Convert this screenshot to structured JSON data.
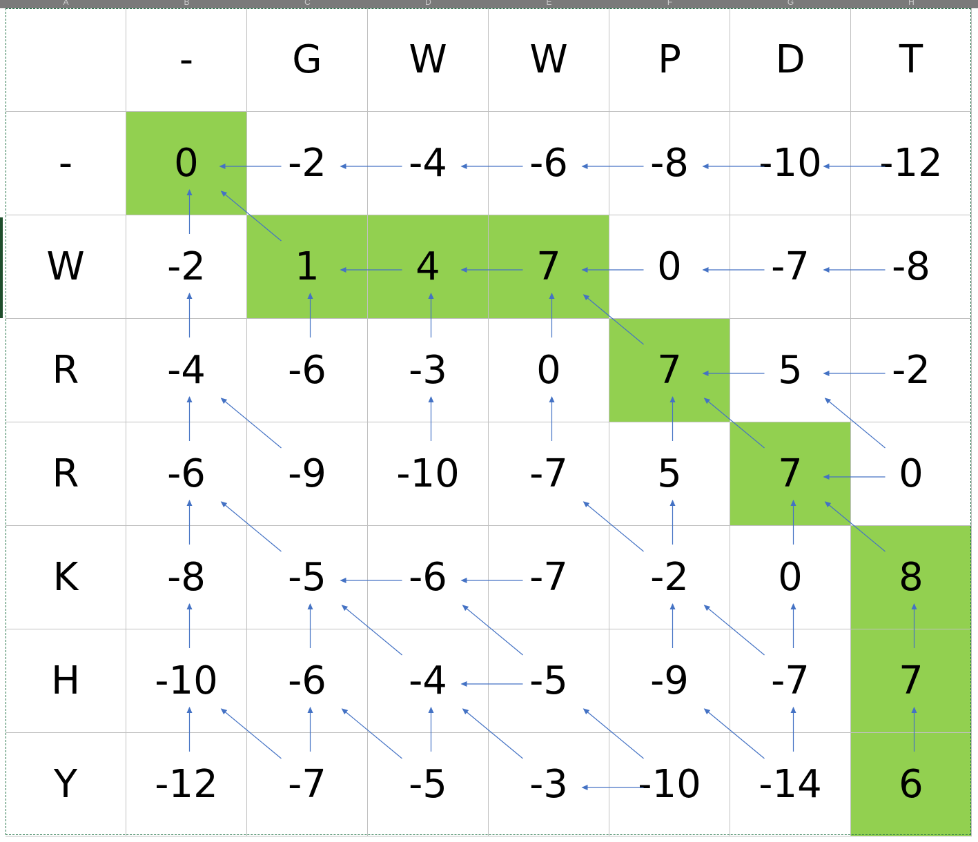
{
  "sheet": {
    "column_letters": [
      "A",
      "B",
      "C",
      "D",
      "E",
      "F",
      "G",
      "H"
    ]
  },
  "matrix": {
    "col_headers": [
      "-",
      "G",
      "W",
      "W",
      "P",
      "D",
      "T"
    ],
    "row_headers": [
      "-",
      "W",
      "R",
      "R",
      "K",
      "H",
      "Y"
    ],
    "cells": [
      [
        "0",
        "-2",
        "-4",
        "-6",
        "-8",
        "-10",
        "-12"
      ],
      [
        "-2",
        "1",
        "4",
        "7",
        "0",
        "-7",
        "-8"
      ],
      [
        "-4",
        "-6",
        "-3",
        "0",
        "7",
        "5",
        "-2"
      ],
      [
        "-6",
        "-9",
        "-10",
        "-7",
        "5",
        "7",
        "0"
      ],
      [
        "-8",
        "-5",
        "-6",
        "-7",
        "-2",
        "0",
        "8"
      ],
      [
        "-10",
        "-6",
        "-4",
        "-5",
        "-9",
        "-7",
        "7"
      ],
      [
        "-12",
        "-7",
        "-5",
        "-3",
        "-10",
        "-14",
        "6"
      ]
    ],
    "highlighted_path": [
      [
        0,
        0
      ],
      [
        1,
        1
      ],
      [
        1,
        2
      ],
      [
        1,
        3
      ],
      [
        2,
        4
      ],
      [
        3,
        5
      ],
      [
        4,
        6
      ],
      [
        5,
        6
      ],
      [
        6,
        6
      ]
    ],
    "arrows": [
      [
        0,
        1,
        "L"
      ],
      [
        0,
        2,
        "L"
      ],
      [
        0,
        3,
        "L"
      ],
      [
        0,
        4,
        "L"
      ],
      [
        0,
        5,
        "L"
      ],
      [
        0,
        6,
        "L"
      ],
      [
        1,
        0,
        "U"
      ],
      [
        1,
        1,
        "D"
      ],
      [
        1,
        2,
        "L"
      ],
      [
        1,
        3,
        "L"
      ],
      [
        1,
        4,
        "L"
      ],
      [
        1,
        5,
        "L"
      ],
      [
        1,
        6,
        "L"
      ],
      [
        2,
        0,
        "U"
      ],
      [
        2,
        1,
        "U"
      ],
      [
        2,
        2,
        "U"
      ],
      [
        2,
        3,
        "U"
      ],
      [
        2,
        4,
        "D"
      ],
      [
        2,
        5,
        "L"
      ],
      [
        2,
        6,
        "L"
      ],
      [
        3,
        0,
        "U"
      ],
      [
        3,
        1,
        "D"
      ],
      [
        3,
        2,
        "U"
      ],
      [
        3,
        3,
        "U"
      ],
      [
        3,
        4,
        "U"
      ],
      [
        3,
        5,
        "D"
      ],
      [
        3,
        6,
        "L"
      ],
      [
        3,
        6,
        "D"
      ],
      [
        4,
        0,
        "U"
      ],
      [
        4,
        1,
        "D"
      ],
      [
        4,
        2,
        "L"
      ],
      [
        4,
        3,
        "L"
      ],
      [
        4,
        4,
        "U"
      ],
      [
        4,
        4,
        "D"
      ],
      [
        4,
        5,
        "U"
      ],
      [
        4,
        6,
        "D"
      ],
      [
        5,
        0,
        "U"
      ],
      [
        5,
        1,
        "U"
      ],
      [
        5,
        2,
        "D"
      ],
      [
        5,
        3,
        "L"
      ],
      [
        5,
        3,
        "D"
      ],
      [
        5,
        4,
        "U"
      ],
      [
        5,
        5,
        "U"
      ],
      [
        5,
        5,
        "D"
      ],
      [
        5,
        6,
        "U"
      ],
      [
        6,
        0,
        "U"
      ],
      [
        6,
        1,
        "U"
      ],
      [
        6,
        1,
        "D"
      ],
      [
        6,
        2,
        "U"
      ],
      [
        6,
        2,
        "D"
      ],
      [
        6,
        3,
        "D"
      ],
      [
        6,
        4,
        "L"
      ],
      [
        6,
        4,
        "D"
      ],
      [
        6,
        5,
        "U"
      ],
      [
        6,
        5,
        "D"
      ],
      [
        6,
        6,
        "U"
      ]
    ],
    "colors": {
      "highlight": "#92d050",
      "arrow": "#4472c4",
      "gridline": "#c0c0c0",
      "column_header_bar": "#7a7a7a"
    }
  }
}
